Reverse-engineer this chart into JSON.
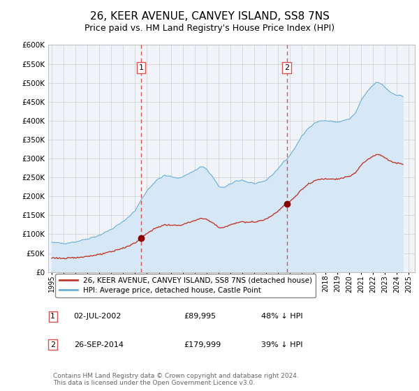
{
  "title": "26, KEER AVENUE, CANVEY ISLAND, SS8 7NS",
  "subtitle": "Price paid vs. HM Land Registry's House Price Index (HPI)",
  "title_fontsize": 11,
  "subtitle_fontsize": 9,
  "ylim": [
    0,
    600000
  ],
  "yticks": [
    0,
    50000,
    100000,
    150000,
    200000,
    250000,
    300000,
    350000,
    400000,
    450000,
    500000,
    550000,
    600000
  ],
  "ytick_labels": [
    "£0",
    "£50K",
    "£100K",
    "£150K",
    "£200K",
    "£250K",
    "£300K",
    "£350K",
    "£400K",
    "£450K",
    "£500K",
    "£550K",
    "£600K"
  ],
  "xlim_start": 1994.7,
  "xlim_end": 2025.5,
  "xtick_years": [
    1995,
    1996,
    1997,
    1998,
    1999,
    2000,
    2001,
    2002,
    2003,
    2004,
    2005,
    2006,
    2007,
    2008,
    2009,
    2010,
    2011,
    2012,
    2013,
    2014,
    2015,
    2016,
    2017,
    2018,
    2019,
    2020,
    2021,
    2022,
    2023,
    2024,
    2025
  ],
  "sale1_x": 2002.5,
  "sale1_y": 89995,
  "sale1_date": "02-JUL-2002",
  "sale1_price": "£89,995",
  "sale1_hpi": "48% ↓ HPI",
  "sale2_x": 2014.75,
  "sale2_y": 179999,
  "sale2_date": "26-SEP-2014",
  "sale2_price": "£179,999",
  "sale2_hpi": "39% ↓ HPI",
  "hpi_line_color": "#6baed6",
  "hpi_fill_color": "#d6e8f5",
  "price_color": "#c0392b",
  "sale_marker_color": "#8b0000",
  "vline_color": "#e05050",
  "grid_color": "#cccccc",
  "bg_color": "#f0f4f8",
  "legend_label_price": "26, KEER AVENUE, CANVEY ISLAND, SS8 7NS (detached house)",
  "legend_label_hpi": "HPI: Average price, detached house, Castle Point",
  "footer_text": "Contains HM Land Registry data © Crown copyright and database right 2024.\nThis data is licensed under the Open Government Licence v3.0."
}
